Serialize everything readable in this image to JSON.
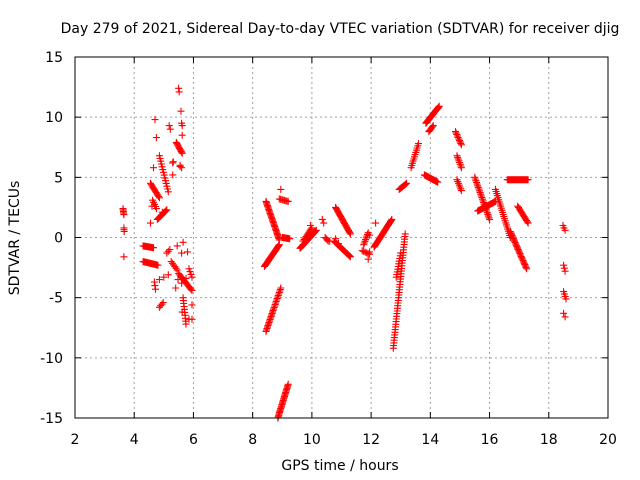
{
  "chart_data": {
    "type": "scatter",
    "title": "Day 279 of 2021, Sidereal Day-to-day VTEC variation (SDTVAR) for receiver djig",
    "xlabel": "GPS time / hours",
    "ylabel": "SDTVAR / TECUs",
    "xlim": [
      2,
      20
    ],
    "ylim": [
      -15,
      15
    ],
    "xticks": [
      2,
      4,
      6,
      8,
      10,
      12,
      14,
      16,
      18,
      20
    ],
    "yticks": [
      -15,
      -10,
      -5,
      0,
      5,
      10,
      15
    ],
    "xtick_labels": [
      "2",
      "4",
      "6",
      "8",
      "10",
      "12",
      "14",
      "16",
      "18",
      "20"
    ],
    "ytick_labels": [
      "-15",
      "-10",
      "-5",
      "0",
      "5",
      "10",
      "15"
    ],
    "grid": true,
    "marker": "+",
    "color": "#ff0000",
    "series": [
      {
        "name": "SDTVAR",
        "segments": [
          {
            "x0": 3.62,
            "y0": 2.4,
            "x1": 3.65,
            "y1": 1.9,
            "n": 5
          },
          {
            "x0": 3.65,
            "y0": 0.8,
            "x1": 3.66,
            "y1": 0.5,
            "n": 3
          },
          {
            "x0": 4.3,
            "y0": -0.7,
            "x1": 4.65,
            "y1": -0.85,
            "n": 14
          },
          {
            "x0": 4.3,
            "y0": -2.0,
            "x1": 4.8,
            "y1": -2.3,
            "n": 18
          },
          {
            "x0": 4.55,
            "y0": 4.5,
            "x1": 4.85,
            "y1": 3.3,
            "n": 12
          },
          {
            "x0": 4.62,
            "y0": 3.1,
            "x1": 4.75,
            "y1": 2.4,
            "n": 5
          },
          {
            "x0": 4.78,
            "y0": 1.5,
            "x1": 5.1,
            "y1": 2.3,
            "n": 12
          },
          {
            "x0": 4.85,
            "y0": 6.8,
            "x1": 5.15,
            "y1": 3.8,
            "n": 14
          },
          {
            "x0": 4.68,
            "y0": -3.7,
            "x1": 4.72,
            "y1": -4.3,
            "n": 3
          },
          {
            "x0": 4.85,
            "y0": -5.8,
            "x1": 4.98,
            "y1": -5.4,
            "n": 4
          },
          {
            "x0": 5.18,
            "y0": 9.3,
            "x1": 5.22,
            "y1": 9.0,
            "n": 2
          },
          {
            "x0": 5.42,
            "y0": 7.9,
            "x1": 5.62,
            "y1": 7.0,
            "n": 10
          },
          {
            "x0": 5.5,
            "y0": 12.4,
            "x1": 5.52,
            "y1": 12.1,
            "n": 2
          },
          {
            "x0": 5.58,
            "y0": 10.5,
            "x1": 5.6,
            "y1": 10.5,
            "n": 1
          },
          {
            "x0": 5.6,
            "y0": 9.5,
            "x1": 5.62,
            "y1": 9.3,
            "n": 2
          },
          {
            "x0": 5.55,
            "y0": 6.0,
            "x1": 5.6,
            "y1": 5.8,
            "n": 2
          },
          {
            "x0": 5.1,
            "y0": -1.3,
            "x1": 5.2,
            "y1": -1.0,
            "n": 3
          },
          {
            "x0": 5.25,
            "y0": -2.0,
            "x1": 5.45,
            "y1": -2.7,
            "n": 6
          },
          {
            "x0": 5.5,
            "y0": -3.0,
            "x1": 5.95,
            "y1": -4.4,
            "n": 14
          },
          {
            "x0": 5.65,
            "y0": -5.0,
            "x1": 5.75,
            "y1": -7.2,
            "n": 10
          },
          {
            "x0": 5.85,
            "y0": -2.6,
            "x1": 5.95,
            "y1": -3.3,
            "n": 4
          },
          {
            "x0": 8.45,
            "y0": 3.0,
            "x1": 8.9,
            "y1": -0.2,
            "n": 30
          },
          {
            "x0": 8.4,
            "y0": -2.4,
            "x1": 8.9,
            "y1": -0.6,
            "n": 26
          },
          {
            "x0": 8.45,
            "y0": -7.8,
            "x1": 8.95,
            "y1": -4.2,
            "n": 30
          },
          {
            "x0": 8.85,
            "y0": -15.0,
            "x1": 9.2,
            "y1": -12.2,
            "n": 26
          },
          {
            "x0": 8.9,
            "y0": 3.2,
            "x1": 9.2,
            "y1": 3.0,
            "n": 8
          },
          {
            "x0": 9.0,
            "y0": 0.0,
            "x1": 9.25,
            "y1": -0.1,
            "n": 10
          },
          {
            "x0": 9.6,
            "y0": -0.9,
            "x1": 10.15,
            "y1": 0.6,
            "n": 26
          },
          {
            "x0": 9.7,
            "y0": -0.3,
            "x1": 10.0,
            "y1": 0.8,
            "n": 10
          },
          {
            "x0": 10.35,
            "y0": 1.5,
            "x1": 10.4,
            "y1": 1.2,
            "n": 2
          },
          {
            "x0": 10.45,
            "y0": 0.0,
            "x1": 10.55,
            "y1": -0.3,
            "n": 4
          },
          {
            "x0": 10.8,
            "y0": 2.5,
            "x1": 11.3,
            "y1": 0.3,
            "n": 24
          },
          {
            "x0": 10.75,
            "y0": -0.3,
            "x1": 11.3,
            "y1": -1.6,
            "n": 24
          },
          {
            "x0": 11.75,
            "y0": -0.6,
            "x1": 11.9,
            "y1": 0.4,
            "n": 8
          },
          {
            "x0": 11.7,
            "y0": -1.1,
            "x1": 11.95,
            "y1": -1.4,
            "n": 6
          },
          {
            "x0": 12.1,
            "y0": -0.8,
            "x1": 12.7,
            "y1": 1.5,
            "n": 28
          },
          {
            "x0": 12.75,
            "y0": -9.2,
            "x1": 13.15,
            "y1": 0.3,
            "n": 44
          },
          {
            "x0": 12.85,
            "y0": -3.3,
            "x1": 13.0,
            "y1": -1.3,
            "n": 10
          },
          {
            "x0": 12.95,
            "y0": 4.0,
            "x1": 13.2,
            "y1": 4.5,
            "n": 10
          },
          {
            "x0": 13.35,
            "y0": 5.8,
            "x1": 13.6,
            "y1": 7.8,
            "n": 12
          },
          {
            "x0": 13.8,
            "y0": 5.2,
            "x1": 14.25,
            "y1": 4.6,
            "n": 20
          },
          {
            "x0": 13.85,
            "y0": 9.5,
            "x1": 14.3,
            "y1": 10.9,
            "n": 24
          },
          {
            "x0": 13.95,
            "y0": 8.8,
            "x1": 14.1,
            "y1": 9.3,
            "n": 6
          },
          {
            "x0": 14.85,
            "y0": 8.8,
            "x1": 15.05,
            "y1": 7.7,
            "n": 10
          },
          {
            "x0": 14.9,
            "y0": 6.8,
            "x1": 15.05,
            "y1": 5.8,
            "n": 8
          },
          {
            "x0": 14.9,
            "y0": 4.8,
            "x1": 15.05,
            "y1": 3.9,
            "n": 7
          },
          {
            "x0": 15.5,
            "y0": 5.0,
            "x1": 16.0,
            "y1": 1.5,
            "n": 26
          },
          {
            "x0": 15.6,
            "y0": 2.2,
            "x1": 16.2,
            "y1": 3.0,
            "n": 24
          },
          {
            "x0": 16.2,
            "y0": 4.0,
            "x1": 16.7,
            "y1": 0.0,
            "n": 24
          },
          {
            "x0": 16.6,
            "y0": 4.8,
            "x1": 17.3,
            "y1": 4.8,
            "n": 26
          },
          {
            "x0": 16.7,
            "y0": 0.5,
            "x1": 17.25,
            "y1": -2.6,
            "n": 28
          },
          {
            "x0": 16.95,
            "y0": 2.6,
            "x1": 17.3,
            "y1": 1.2,
            "n": 14
          },
          {
            "x0": 18.48,
            "y0": 1.0,
            "x1": 18.55,
            "y1": 0.6,
            "n": 3
          },
          {
            "x0": 18.5,
            "y0": -2.3,
            "x1": 18.55,
            "y1": -2.8,
            "n": 3
          },
          {
            "x0": 18.5,
            "y0": -4.5,
            "x1": 18.58,
            "y1": -5.1,
            "n": 4
          },
          {
            "x0": 18.5,
            "y0": -6.3,
            "x1": 18.55,
            "y1": -6.6,
            "n": 2
          }
        ],
        "points": [
          [
            3.65,
            -1.6
          ],
          [
            4.55,
            1.2
          ],
          [
            4.6,
            2.6
          ],
          [
            4.7,
            9.8
          ],
          [
            4.75,
            8.3
          ],
          [
            4.65,
            5.8
          ],
          [
            4.95,
            2.1
          ],
          [
            5.3,
            6.2
          ],
          [
            5.32,
            6.3
          ],
          [
            5.3,
            5.2
          ],
          [
            5.45,
            -0.7
          ],
          [
            5.6,
            -1.3
          ],
          [
            5.65,
            -0.4
          ],
          [
            5.8,
            -1.2
          ],
          [
            5.55,
            5.9
          ],
          [
            5.62,
            8.5
          ],
          [
            5.4,
            -4.2
          ],
          [
            5.6,
            -3.8
          ],
          [
            5.48,
            -3.5
          ],
          [
            5.75,
            -3.4
          ],
          [
            5.85,
            -6.8
          ],
          [
            5.95,
            -6.8
          ],
          [
            5.95,
            -5.6
          ],
          [
            5.62,
            -6.2
          ],
          [
            4.85,
            -3.5
          ],
          [
            5.0,
            -3.3
          ],
          [
            5.15,
            -3.1
          ],
          [
            9.95,
            1.0
          ],
          [
            11.9,
            -1.8
          ],
          [
            11.95,
            -1.2
          ],
          [
            11.95,
            0.2
          ],
          [
            12.15,
            1.2
          ],
          [
            10.8,
            -0.1
          ],
          [
            10.9,
            -0.5
          ],
          [
            8.95,
            4.0
          ],
          [
            10.6,
            -0.3
          ]
        ]
      }
    ]
  }
}
